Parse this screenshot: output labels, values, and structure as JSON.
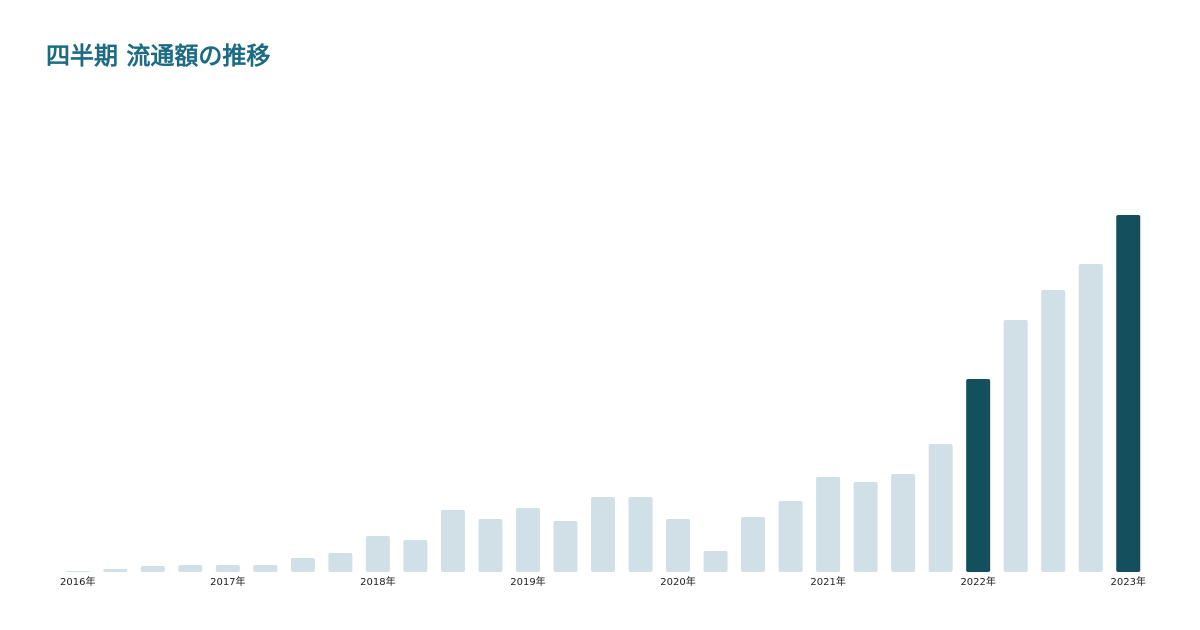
{
  "chart_data": {
    "type": "bar",
    "title": "四半期 流通額の推移",
    "categories": [
      "2016年",
      null,
      null,
      null,
      "2017年",
      null,
      null,
      null,
      "2018年",
      null,
      null,
      null,
      "2019年",
      null,
      null,
      null,
      "2020年",
      null,
      null,
      null,
      "2021年",
      null,
      null,
      null,
      "2022年",
      null,
      null,
      null,
      "2023年"
    ],
    "values": [
      1,
      3,
      6,
      7,
      7,
      7,
      14,
      19,
      36,
      32,
      62,
      53,
      64,
      51,
      75,
      75,
      53,
      21,
      55,
      71,
      95,
      90,
      98,
      128,
      193,
      252,
      282,
      308,
      357
    ],
    "colors": [
      "#d0e0e6",
      "#d0e0e6",
      "#d0e0e6",
      "#d0e0e6",
      "#d0e0e6",
      "#d0e0e6",
      "#d0e0e6",
      "#d0e0e6",
      "#d0e0e6",
      "#d0e0e6",
      "#d0e0e6",
      "#d0e0e6",
      "#d0e0e6",
      "#d0e0e6",
      "#d0e0e6",
      "#d0e0e6",
      "#d0e0e6",
      "#d0e0e6",
      "#d0e0e6",
      "#d0e0e6",
      "#d0e0e6",
      "#d0e0e6",
      "#d0e0e6",
      "#d0e0e6",
      "#134f5c",
      "#d0e0e6",
      "#d0e0e6",
      "#d0e0e6",
      "#134f5c"
    ],
    "ylim": [
      0,
      400
    ],
    "grid": false
  }
}
